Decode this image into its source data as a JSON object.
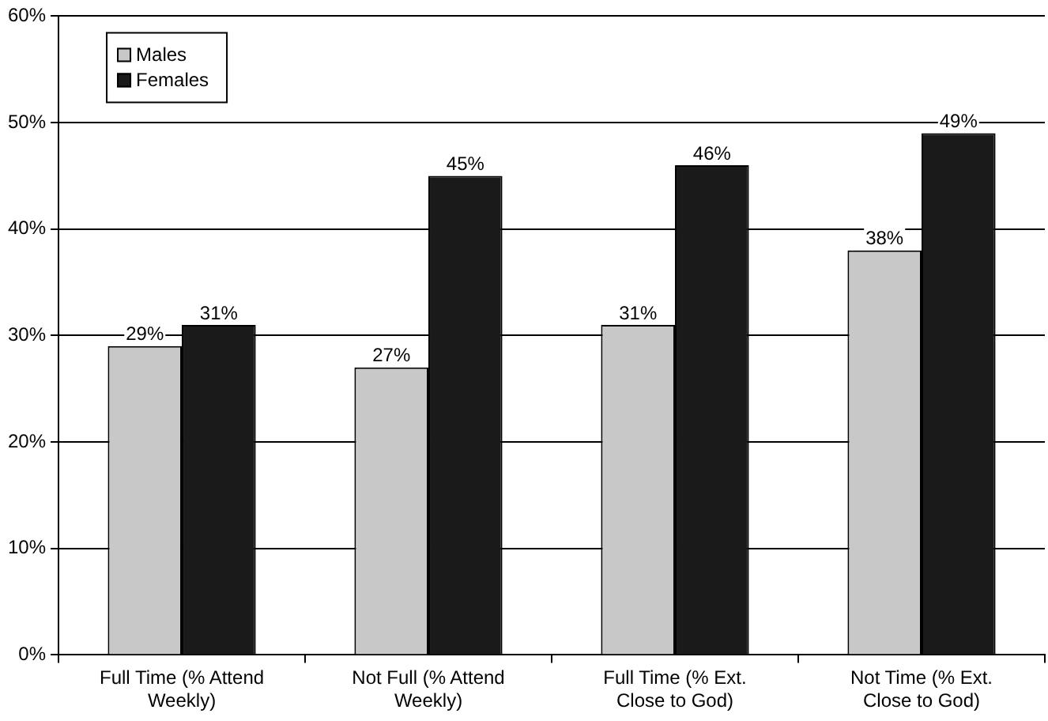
{
  "chart_data": {
    "type": "bar",
    "categories": [
      "Full Time (% Attend Weekly)",
      "Not Full (% Attend Weekly)",
      "Full Time (% Ext. Close to God)",
      "Not Time (% Ext. Close to God)"
    ],
    "series": [
      {
        "name": "Males",
        "color": "#c8c8c8",
        "values": [
          29,
          27,
          31,
          38
        ],
        "value_labels": [
          "29%",
          "27%",
          "31%",
          "38%"
        ]
      },
      {
        "name": "Females",
        "color": "#1a1a1a",
        "values": [
          31,
          45,
          46,
          49
        ],
        "value_labels": [
          "31%",
          "45%",
          "46%",
          "49%"
        ]
      }
    ],
    "ylim": [
      0,
      60
    ],
    "yticks": [
      {
        "value": 0,
        "label": "0%"
      },
      {
        "value": 10,
        "label": "10%"
      },
      {
        "value": 20,
        "label": "20%"
      },
      {
        "value": 30,
        "label": "30%"
      },
      {
        "value": 40,
        "label": "40%"
      },
      {
        "value": 50,
        "label": "50%"
      },
      {
        "value": 60,
        "label": "60%"
      }
    ],
    "grid": "y",
    "legend": "top left"
  }
}
